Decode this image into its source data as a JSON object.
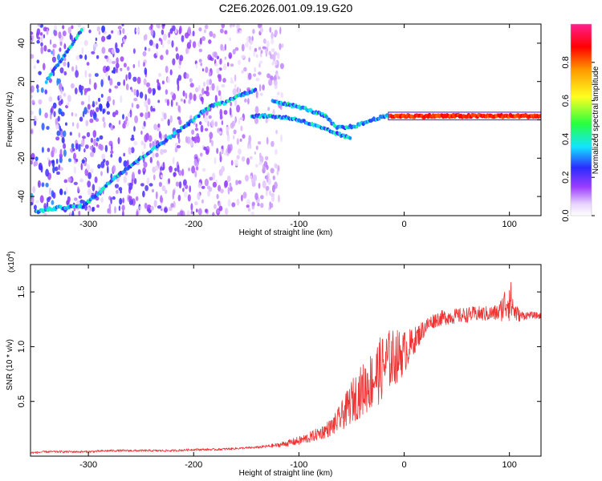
{
  "title": "C2E6.2026.001.09.19.G20",
  "chart_data": [
    {
      "type": "heatmap",
      "xlabel": "Height of straight line (km)",
      "ylabel": "Frequency (Hz)",
      "xlim": [
        -355,
        130
      ],
      "ylim": [
        -50,
        50
      ],
      "xticks": [
        -300,
        -200,
        -100,
        0,
        100
      ],
      "yticks": [
        -40,
        -20,
        0,
        20,
        40
      ],
      "colorbar": {
        "label": "Normalized spectral amplitude",
        "range": [
          0,
          1
        ],
        "ticks": [
          0.0,
          0.2,
          0.4,
          0.6,
          0.8
        ],
        "tick_labels": [
          "0.0",
          "0.2",
          "0.4",
          "0.6",
          "0.8"
        ]
      },
      "traces": [
        {
          "points": [
            [
              -350,
              -48
            ],
            [
              -330,
              -46
            ],
            [
              -305,
              -45
            ],
            [
              -290,
              -38
            ],
            [
              -275,
              -30
            ],
            [
              -260,
              -24
            ],
            [
              -245,
              -18
            ],
            [
              -230,
              -12
            ],
            [
              -215,
              -6
            ],
            [
              -200,
              0
            ],
            [
              -190,
              5
            ],
            [
              -180,
              8
            ],
            [
              -170,
              9
            ],
            [
              -160,
              12
            ],
            [
              -150,
              14
            ],
            [
              -140,
              16
            ]
          ]
        },
        {
          "points": [
            [
              -340,
              20
            ],
            [
              -330,
              28
            ],
            [
              -320,
              36
            ],
            [
              -310,
              44
            ],
            [
              -305,
              48
            ]
          ]
        },
        {
          "points": [
            [
              -145,
              2
            ],
            [
              -130,
              2
            ],
            [
              -110,
              1
            ],
            [
              -100,
              0
            ],
            [
              -90,
              -2
            ],
            [
              -80,
              -4
            ],
            [
              -70,
              -6
            ],
            [
              -60,
              -8
            ],
            [
              -50,
              -10
            ]
          ]
        },
        {
          "points": [
            [
              -125,
              10
            ],
            [
              -110,
              8
            ],
            [
              -95,
              6
            ],
            [
              -85,
              4
            ],
            [
              -75,
              2
            ],
            [
              -65,
              -4
            ],
            [
              -55,
              -4
            ],
            [
              -45,
              -3
            ],
            [
              -35,
              -1
            ],
            [
              -25,
              1
            ],
            [
              -15,
              2
            ],
            [
              0,
              2
            ],
            [
              30,
              2
            ],
            [
              60,
              2
            ],
            [
              90,
              2
            ],
            [
              130,
              2
            ]
          ]
        }
      ]
    },
    {
      "type": "line",
      "xlabel": "Height of straight line (km)",
      "ylabel": "SNR (10 * v/v)",
      "scale_label": "(x10",
      "scale_exp": "4",
      "scale_close": ")",
      "xlim": [
        -355,
        130
      ],
      "ylim": [
        0,
        1.75
      ],
      "xticks": [
        -300,
        -200,
        -100,
        0,
        100
      ],
      "yticks": [
        0.5,
        1.0,
        1.5
      ],
      "ytick_labels": [
        "0.5",
        "1.0",
        "1.5"
      ],
      "series": [
        {
          "color": "#ee3333",
          "x": [
            -355,
            -340,
            -320,
            -300,
            -280,
            -260,
            -240,
            -220,
            -200,
            -180,
            -160,
            -140,
            -120,
            -110,
            -100,
            -90,
            -80,
            -70,
            -65,
            -60,
            -55,
            -50,
            -45,
            -40,
            -35,
            -30,
            -25,
            -20,
            -15,
            -10,
            -5,
            0,
            5,
            10,
            15,
            20,
            25,
            30,
            40,
            50,
            60,
            70,
            80,
            90,
            95,
            100,
            105,
            110,
            120,
            130
          ],
          "y": [
            0.03,
            0.04,
            0.04,
            0.04,
            0.05,
            0.05,
            0.05,
            0.05,
            0.06,
            0.06,
            0.07,
            0.08,
            0.1,
            0.12,
            0.14,
            0.17,
            0.21,
            0.26,
            0.3,
            0.36,
            0.42,
            0.5,
            0.55,
            0.6,
            0.65,
            0.7,
            0.76,
            0.82,
            0.88,
            0.9,
            0.92,
            0.95,
            1.0,
            1.06,
            1.12,
            1.18,
            1.22,
            1.25,
            1.27,
            1.28,
            1.29,
            1.3,
            1.3,
            1.31,
            1.38,
            1.45,
            1.32,
            1.28,
            1.29,
            1.28
          ],
          "noise": [
            0.01,
            0.01,
            0.01,
            0.01,
            0.01,
            0.01,
            0.01,
            0.01,
            0.01,
            0.01,
            0.01,
            0.01,
            0.02,
            0.03,
            0.04,
            0.05,
            0.06,
            0.08,
            0.1,
            0.13,
            0.16,
            0.2,
            0.22,
            0.24,
            0.26,
            0.28,
            0.3,
            0.3,
            0.28,
            0.26,
            0.24,
            0.2,
            0.16,
            0.12,
            0.1,
            0.08,
            0.07,
            0.07,
            0.07,
            0.07,
            0.07,
            0.07,
            0.07,
            0.08,
            0.15,
            0.22,
            0.1,
            0.05,
            0.03,
            0.03
          ]
        }
      ]
    }
  ]
}
